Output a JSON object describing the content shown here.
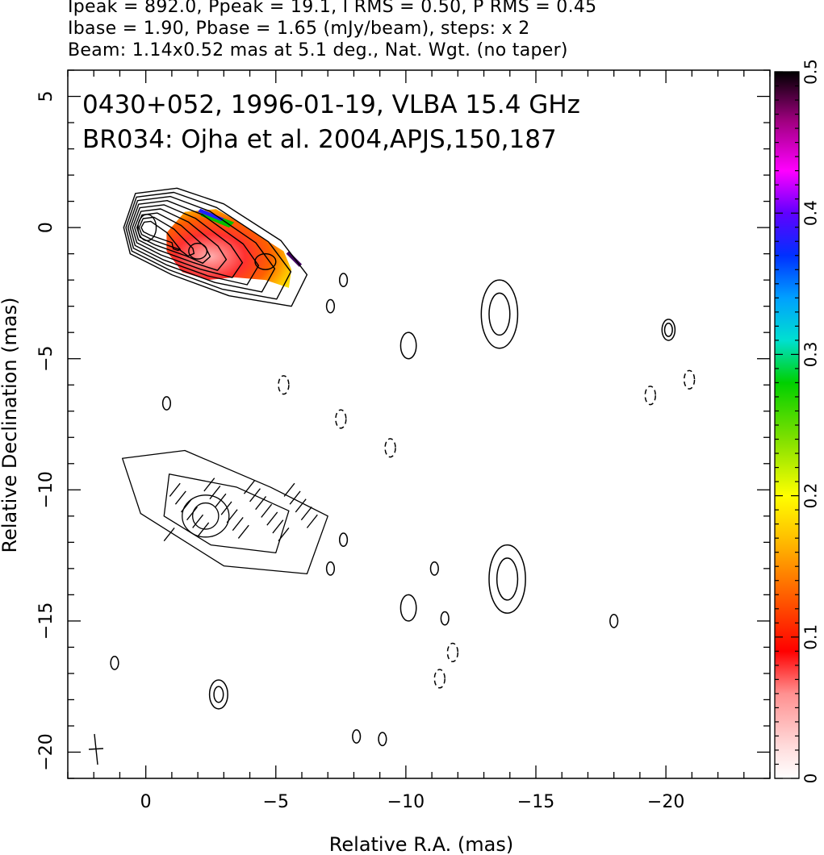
{
  "header": {
    "line1": "Ipeak = 892.0, Ppeak = 19.1, I RMS = 0.50, P RMS = 0.45",
    "line2": "Ibase = 1.90, Pbase = 1.65 (mJy/beam), steps: x 2",
    "line3": "Beam: 1.14x0.52 mas at 5.1 deg., Nat. Wgt. (no taper)"
  },
  "annotations": {
    "source_line": "0430+052, 1996-01-19, VLBA 15.4 GHz",
    "reference_line": "BR034: Ojha et al. 2004,APJS,150,187"
  },
  "chart_data": {
    "type": "contour",
    "xlabel": "Relative R.A. (mas)",
    "ylabel": "Relative Declination (mas)",
    "xlim": [
      3.0,
      -24.0
    ],
    "ylim": [
      -21.0,
      6.0
    ],
    "x_ticks": [
      0,
      -5,
      -10,
      -15,
      -20
    ],
    "y_ticks": [
      5,
      0,
      -5,
      -10,
      -15,
      -20
    ],
    "colorbar": {
      "range": [
        0,
        0.5
      ],
      "ticks": [
        0,
        0.1,
        0.2,
        0.3,
        0.4,
        0.5
      ],
      "colors": [
        "#ffffff",
        "#ffd8d8",
        "#ff8080",
        "#ff0000",
        "#ff5000",
        "#ffa000",
        "#ffe000",
        "#a0e000",
        "#00d000",
        "#00e0c0",
        "#00a0ff",
        "#0040ff",
        "#4000ff",
        "#c000ff",
        "#ff00ff",
        "#800060",
        "#000000"
      ]
    },
    "beam": {
      "major_mas": 1.14,
      "minor_mas": 0.52,
      "pa_deg": 5.1
    },
    "upper_source": {
      "core": {
        "x": 0.0,
        "y": 0.0
      },
      "contour_levels_mJy": [
        1.9,
        3.8,
        7.6,
        15.2,
        30.4,
        60.8,
        121.6,
        243.2,
        486.4
      ],
      "fractional_polarization_patch": {
        "x_range": [
          -0.8,
          -5.6
        ],
        "y_range": [
          0.7,
          -2.3
        ],
        "max": 0.5
      }
    },
    "lower_panel": {
      "center": {
        "x": -2.5,
        "y": -10.5
      },
      "description_values": "Polarized intensity contours with EVPA ticks"
    },
    "isolated_contours": [
      {
        "x": -7.6,
        "y": -2.0
      },
      {
        "x": -7.1,
        "y": -3.0
      },
      {
        "x": -10.1,
        "y": -4.5
      },
      {
        "x": -0.8,
        "y": -6.7
      },
      {
        "x": -13.6,
        "y": -3.3
      },
      {
        "x": -20.1,
        "y": -3.9
      },
      {
        "x": -7.6,
        "y": -11.9
      },
      {
        "x": -7.1,
        "y": -13.0
      },
      {
        "x": -11.1,
        "y": -13.0
      },
      {
        "x": -10.1,
        "y": -14.5
      },
      {
        "x": -11.5,
        "y": -14.9
      },
      {
        "x": -2.8,
        "y": -17.8
      },
      {
        "x": -13.9,
        "y": -13.4
      },
      {
        "x": -18.0,
        "y": -15.0
      },
      {
        "x": -8.1,
        "y": -19.4
      },
      {
        "x": -9.1,
        "y": -19.5
      },
      {
        "x": 1.2,
        "y": -16.6
      }
    ]
  }
}
